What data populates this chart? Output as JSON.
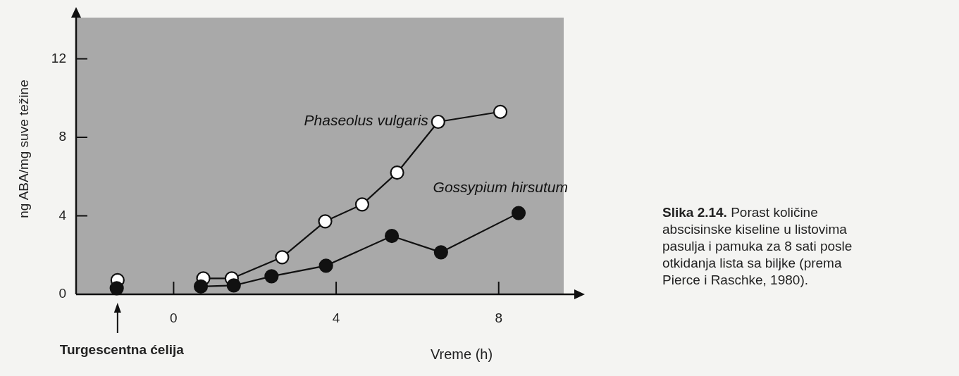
{
  "chart_data": {
    "type": "line",
    "ylabel": "ng ABA/mg suve težine",
    "xlabel": "Vreme (h)",
    "xlim": [
      -2.4,
      9.6
    ],
    "ylim": [
      0,
      14.1
    ],
    "xticks": [
      0,
      4,
      8
    ],
    "yticks": [
      0,
      4,
      8,
      12
    ],
    "grid": false,
    "marker": "circle",
    "line_style": "solid",
    "series": [
      {
        "name": "Phaseolus vulgaris",
        "color": "#ffffff",
        "x": [
          -1.38,
          -0.4,
          0.73,
          1.43,
          2.67,
          3.73,
          4.64,
          5.5,
          6.51,
          8.04
        ],
        "values": [
          0.72,
          null,
          0.81,
          0.81,
          1.89,
          3.72,
          4.58,
          6.2,
          8.79,
          9.3
        ]
      },
      {
        "name": "Gossypium hirsutum",
        "color": "#111111",
        "x": [
          -1.4,
          -0.4,
          0.67,
          1.48,
          2.41,
          3.75,
          5.37,
          6.58,
          8.49
        ],
        "values": [
          0.31,
          null,
          0.4,
          0.45,
          0.92,
          1.46,
          2.97,
          2.14,
          4.14
        ]
      }
    ],
    "annotations": [
      "Turgescentna ćelija",
      "Slika 2.14. Porast količine abscisinske kiseline u listovima pasulja i pamuka za 8 sati posle otkidanja lista sa biljke (prema Pierce i Raschke, 1980)."
    ]
  }
}
